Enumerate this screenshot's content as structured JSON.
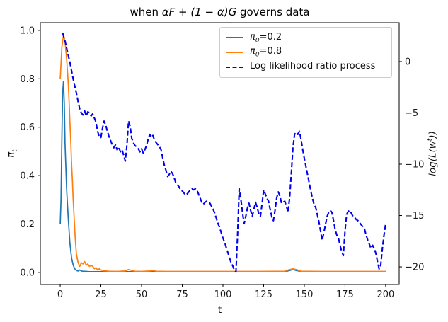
{
  "title": {
    "prefix": "when ",
    "math": "αF + (1 − α)G",
    "suffix": " governs data"
  },
  "axes": {
    "x_label": "t",
    "left_label": {
      "base": "π",
      "sub": "t"
    },
    "right_label": {
      "pre": "log(L(w",
      "sup": "t",
      "post": "))"
    },
    "x_ticks": [
      {
        "v": 0,
        "label": "0"
      },
      {
        "v": 25,
        "label": "25"
      },
      {
        "v": 50,
        "label": "50"
      },
      {
        "v": 75,
        "label": "75"
      },
      {
        "v": 100,
        "label": "100"
      },
      {
        "v": 125,
        "label": "125"
      },
      {
        "v": 150,
        "label": "150"
      },
      {
        "v": 175,
        "label": "175"
      },
      {
        "v": 200,
        "label": "200"
      }
    ],
    "left_ticks": [
      {
        "v": 0.0,
        "label": "0.0"
      },
      {
        "v": 0.2,
        "label": "0.2"
      },
      {
        "v": 0.4,
        "label": "0.4"
      },
      {
        "v": 0.6,
        "label": "0.6"
      },
      {
        "v": 0.8,
        "label": "0.8"
      },
      {
        "v": 1.0,
        "label": "1.0"
      }
    ],
    "right_ticks": [
      {
        "v": 0,
        "label": "0"
      },
      {
        "v": -5,
        "label": "−5"
      },
      {
        "v": -10,
        "label": "−10"
      },
      {
        "v": -15,
        "label": "−15"
      },
      {
        "v": -20,
        "label": "−20"
      }
    ]
  },
  "legend": {
    "position": "upper right",
    "items": [
      {
        "base": "π",
        "sub": "0",
        "rest": "=0.2",
        "color": "#1f77b4",
        "dashed": false
      },
      {
        "base": "π",
        "sub": "0",
        "rest": "=0.8",
        "color": "#ff7f0e",
        "dashed": false
      },
      {
        "base": "Log likelihood ratio process",
        "sub": "",
        "rest": "",
        "color": "#0000ee",
        "dashed": true
      }
    ]
  },
  "chart_data": {
    "type": "line",
    "title": "when αF + (1 − α)G governs data",
    "xlabel": "t",
    "ylabel_left": "π_t",
    "ylabel_right": "log(L(w^t))",
    "xlim": [
      -12.2,
      208.3
    ],
    "ylim_left": [
      -0.05,
      1.032
    ],
    "ylim_right": [
      -21.72,
      3.79
    ],
    "grid": false,
    "series": [
      {
        "name": "π0=0.2",
        "axis": "left",
        "color": "#1f77b4",
        "style": "solid",
        "points": [
          [
            0,
            0.2
          ],
          [
            0.5,
            0.3
          ],
          [
            1,
            0.55
          ],
          [
            1.5,
            0.74
          ],
          [
            2,
            0.79
          ],
          [
            2.5,
            0.7
          ],
          [
            3,
            0.53
          ],
          [
            4,
            0.34
          ],
          [
            5,
            0.22
          ],
          [
            6,
            0.12
          ],
          [
            7,
            0.06
          ],
          [
            8,
            0.03
          ],
          [
            9,
            0.015
          ],
          [
            10,
            0.008
          ],
          [
            11,
            0.006
          ],
          [
            12,
            0.01
          ],
          [
            13,
            0.006
          ],
          [
            14,
            0.005
          ],
          [
            16,
            0.004
          ],
          [
            18,
            0.003
          ],
          [
            20,
            0.003
          ],
          [
            30,
            0.003
          ],
          [
            40,
            0.003
          ],
          [
            60,
            0.003
          ],
          [
            80,
            0.003
          ],
          [
            100,
            0.003
          ],
          [
            120,
            0.003
          ],
          [
            138,
            0.003
          ],
          [
            141,
            0.008
          ],
          [
            143,
            0.012
          ],
          [
            145,
            0.008
          ],
          [
            148,
            0.004
          ],
          [
            160,
            0.003
          ],
          [
            180,
            0.003
          ],
          [
            200,
            0.003
          ]
        ]
      },
      {
        "name": "π0=0.8",
        "axis": "left",
        "color": "#ff7f0e",
        "style": "solid",
        "points": [
          [
            0,
            0.8
          ],
          [
            1,
            0.93
          ],
          [
            2,
            0.98
          ],
          [
            3,
            0.955
          ],
          [
            4,
            0.88
          ],
          [
            5,
            0.78
          ],
          [
            5.5,
            0.7
          ],
          [
            6,
            0.62
          ],
          [
            6.5,
            0.54
          ],
          [
            7,
            0.45
          ],
          [
            7.5,
            0.38
          ],
          [
            8,
            0.3
          ],
          [
            8.5,
            0.235
          ],
          [
            9,
            0.17
          ],
          [
            9.5,
            0.115
          ],
          [
            10,
            0.075
          ],
          [
            11,
            0.04
          ],
          [
            12,
            0.025
          ],
          [
            13,
            0.04
          ],
          [
            14,
            0.035
          ],
          [
            15,
            0.045
          ],
          [
            16,
            0.03
          ],
          [
            17,
            0.035
          ],
          [
            18,
            0.025
          ],
          [
            19,
            0.03
          ],
          [
            20,
            0.025
          ],
          [
            21,
            0.015
          ],
          [
            22,
            0.02
          ],
          [
            23,
            0.01
          ],
          [
            24,
            0.015
          ],
          [
            25,
            0.01
          ],
          [
            27,
            0.007
          ],
          [
            30,
            0.005
          ],
          [
            35,
            0.004
          ],
          [
            40,
            0.006
          ],
          [
            42,
            0.012
          ],
          [
            44,
            0.008
          ],
          [
            46,
            0.005
          ],
          [
            50,
            0.004
          ],
          [
            55,
            0.006
          ],
          [
            57,
            0.008
          ],
          [
            59,
            0.005
          ],
          [
            65,
            0.004
          ],
          [
            80,
            0.004
          ],
          [
            100,
            0.004
          ],
          [
            120,
            0.004
          ],
          [
            138,
            0.005
          ],
          [
            141,
            0.012
          ],
          [
            143,
            0.015
          ],
          [
            145,
            0.012
          ],
          [
            148,
            0.005
          ],
          [
            160,
            0.004
          ],
          [
            180,
            0.004
          ],
          [
            200,
            0.004
          ]
        ]
      },
      {
        "name": "Log likelihood ratio process",
        "axis": "right",
        "color": "#0000ee",
        "style": "dashed",
        "points": [
          [
            1.5,
            2.8
          ],
          [
            3,
            2.0
          ],
          [
            4,
            1.3
          ],
          [
            5,
            0.6
          ],
          [
            6,
            -0.1
          ],
          [
            7,
            -0.9
          ],
          [
            8,
            -1.7
          ],
          [
            9,
            -2.4
          ],
          [
            10,
            -3.1
          ],
          [
            11,
            -3.9
          ],
          [
            12,
            -4.6
          ],
          [
            13,
            -5.0
          ],
          [
            14,
            -5.2
          ],
          [
            15,
            -4.8
          ],
          [
            16,
            -5.3
          ],
          [
            17,
            -4.9
          ],
          [
            18,
            -5.0
          ],
          [
            19,
            -5.3
          ],
          [
            20,
            -5.1
          ],
          [
            21,
            -5.5
          ],
          [
            22,
            -5.9
          ],
          [
            23,
            -6.8
          ],
          [
            24,
            -7.3
          ],
          [
            25,
            -7.4
          ],
          [
            26,
            -6.5
          ],
          [
            27,
            -5.8
          ],
          [
            28,
            -6.2
          ],
          [
            29,
            -6.8
          ],
          [
            30,
            -7.3
          ],
          [
            31,
            -7.7
          ],
          [
            32,
            -8.1
          ],
          [
            33,
            -8.4
          ],
          [
            34,
            -8.1
          ],
          [
            35,
            -8.6
          ],
          [
            36,
            -8.3
          ],
          [
            37,
            -8.8
          ],
          [
            38,
            -8.6
          ],
          [
            39,
            -9.1
          ],
          [
            40,
            -9.7
          ],
          [
            41,
            -8.2
          ],
          [
            42,
            -5.8
          ],
          [
            43,
            -6.3
          ],
          [
            44,
            -7.5
          ],
          [
            45,
            -7.9
          ],
          [
            46,
            -8.2
          ],
          [
            47,
            -8.3
          ],
          [
            48,
            -8.5
          ],
          [
            49,
            -8.8
          ],
          [
            50,
            -8.5
          ],
          [
            51,
            -8.9
          ],
          [
            52,
            -8.6
          ],
          [
            53,
            -8.2
          ],
          [
            54,
            -7.6
          ],
          [
            55,
            -7.1
          ],
          [
            56,
            -7.4
          ],
          [
            57,
            -7.2
          ],
          [
            58,
            -7.7
          ],
          [
            59,
            -7.9
          ],
          [
            60,
            -8.1
          ],
          [
            61,
            -8.3
          ],
          [
            62,
            -8.6
          ],
          [
            63,
            -9.4
          ],
          [
            64,
            -10.1
          ],
          [
            65,
            -10.6
          ],
          [
            66,
            -11.2
          ],
          [
            67,
            -11.0
          ],
          [
            68,
            -10.7
          ],
          [
            69,
            -10.9
          ],
          [
            70,
            -11.3
          ],
          [
            71,
            -11.8
          ],
          [
            72,
            -12.0
          ],
          [
            73,
            -12.2
          ],
          [
            74,
            -12.5
          ],
          [
            75,
            -12.6
          ],
          [
            76,
            -12.8
          ],
          [
            77,
            -13.0
          ],
          [
            78,
            -12.9
          ],
          [
            79,
            -12.7
          ],
          [
            80,
            -12.5
          ],
          [
            81,
            -12.4
          ],
          [
            82,
            -12.5
          ],
          [
            83,
            -12.4
          ],
          [
            84,
            -12.5
          ],
          [
            85,
            -12.9
          ],
          [
            86,
            -13.3
          ],
          [
            87,
            -13.7
          ],
          [
            88,
            -13.9
          ],
          [
            89,
            -13.7
          ],
          [
            90,
            -13.6
          ],
          [
            91,
            -13.7
          ],
          [
            92,
            -13.8
          ],
          [
            93,
            -14.1
          ],
          [
            94,
            -14.4
          ],
          [
            95,
            -14.8
          ],
          [
            96,
            -15.3
          ],
          [
            97,
            -15.8
          ],
          [
            98,
            -16.2
          ],
          [
            99,
            -16.7
          ],
          [
            100,
            -17.2
          ],
          [
            101,
            -17.6
          ],
          [
            102,
            -18.1
          ],
          [
            103,
            -18.6
          ],
          [
            104,
            -19.1
          ],
          [
            105,
            -19.6
          ],
          [
            106,
            -19.9
          ],
          [
            107,
            -20.3
          ],
          [
            108,
            -20.5
          ],
          [
            109,
            -16.8
          ],
          [
            110,
            -12.4
          ],
          [
            111,
            -13.4
          ],
          [
            112,
            -14.7
          ],
          [
            113,
            -15.8
          ],
          [
            114,
            -15.1
          ],
          [
            115,
            -14.3
          ],
          [
            116,
            -13.8
          ],
          [
            117,
            -14.5
          ],
          [
            118,
            -15.1
          ],
          [
            119,
            -14.4
          ],
          [
            120,
            -13.7
          ],
          [
            121,
            -14.2
          ],
          [
            122,
            -14.8
          ],
          [
            123,
            -15.1
          ],
          [
            124,
            -13.9
          ],
          [
            125,
            -12.5
          ],
          [
            126,
            -12.9
          ],
          [
            127,
            -13.3
          ],
          [
            128,
            -13.6
          ],
          [
            129,
            -14.4
          ],
          [
            130,
            -15.1
          ],
          [
            131,
            -15.5
          ],
          [
            132,
            -14.5
          ],
          [
            133,
            -13.3
          ],
          [
            134,
            -12.7
          ],
          [
            135,
            -13.1
          ],
          [
            136,
            -13.8
          ],
          [
            137,
            -13.7
          ],
          [
            138,
            -13.6
          ],
          [
            139,
            -14.1
          ],
          [
            140,
            -14.7
          ],
          [
            141,
            -13.2
          ],
          [
            142,
            -10.9
          ],
          [
            143,
            -8.4
          ],
          [
            144,
            -7.1
          ],
          [
            145,
            -6.9
          ],
          [
            146,
            -7.1
          ],
          [
            147,
            -6.8
          ],
          [
            148,
            -7.6
          ],
          [
            149,
            -8.6
          ],
          [
            150,
            -9.4
          ],
          [
            151,
            -10.2
          ],
          [
            152,
            -11.0
          ],
          [
            153,
            -11.8
          ],
          [
            154,
            -12.6
          ],
          [
            155,
            -13.3
          ],
          [
            156,
            -13.9
          ],
          [
            157,
            -14.2
          ],
          [
            158,
            -14.9
          ],
          [
            159,
            -15.6
          ],
          [
            160,
            -16.5
          ],
          [
            161,
            -17.4
          ],
          [
            162,
            -16.7
          ],
          [
            163,
            -15.9
          ],
          [
            164,
            -15.1
          ],
          [
            165,
            -14.7
          ],
          [
            166,
            -14.5
          ],
          [
            167,
            -14.7
          ],
          [
            168,
            -15.5
          ],
          [
            169,
            -16.4
          ],
          [
            170,
            -16.9
          ],
          [
            171,
            -17.2
          ],
          [
            172,
            -17.9
          ],
          [
            173,
            -18.5
          ],
          [
            174,
            -18.9
          ],
          [
            175,
            -16.6
          ],
          [
            176,
            -14.9
          ],
          [
            177,
            -14.6
          ],
          [
            178,
            -14.5
          ],
          [
            179,
            -14.8
          ],
          [
            180,
            -15.1
          ],
          [
            181,
            -15.2
          ],
          [
            182,
            -15.4
          ],
          [
            183,
            -15.5
          ],
          [
            184,
            -15.7
          ],
          [
            185,
            -15.9
          ],
          [
            186,
            -16.1
          ],
          [
            187,
            -16.3
          ],
          [
            188,
            -16.9
          ],
          [
            189,
            -17.4
          ],
          [
            190,
            -17.8
          ],
          [
            191,
            -18.2
          ],
          [
            192,
            -17.9
          ],
          [
            193,
            -18.2
          ],
          [
            194,
            -18.7
          ],
          [
            195,
            -19.5
          ],
          [
            196,
            -20.2
          ],
          [
            197,
            -19.8
          ],
          [
            198,
            -18.2
          ],
          [
            199,
            -16.9
          ],
          [
            200,
            -15.8
          ]
        ]
      }
    ]
  }
}
